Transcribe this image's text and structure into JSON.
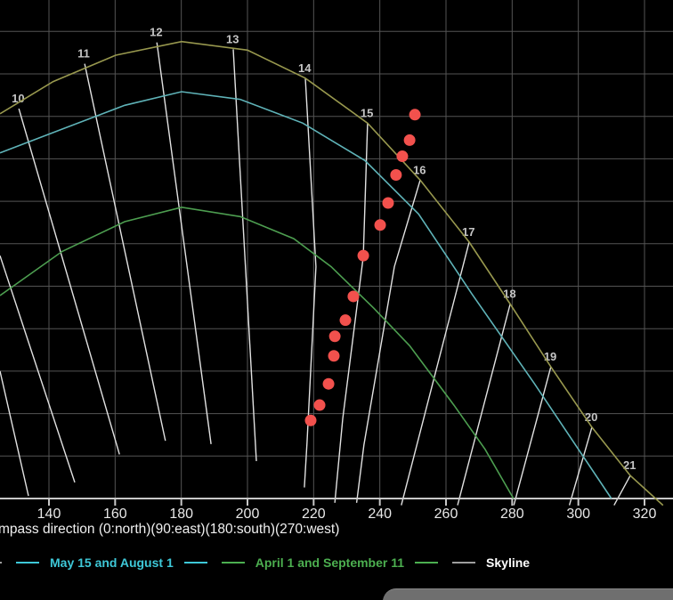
{
  "colors": {
    "background": "#000000",
    "grid": "#545454",
    "axis_skyline": "#c8c8c8",
    "hour_line": "#e2e2e2",
    "hour_label": "#c6c6c6",
    "tick_label": "#e8e8e8",
    "axis_title": "#f0f0f0",
    "upper_curve": "#98984e",
    "may_aug_curve": "#5fb3b8",
    "apr_sep_curve": "#4d9e50",
    "sun_dot": "#f2514d",
    "legend_may_aug": "#3ec8d8",
    "legend_apr_sep": "#4caf50",
    "legend_gray_dash": "#9e9e9e",
    "legend_skyline_text": "#ffffff",
    "bottom_sheet": "#6f6f6f"
  },
  "x_axis": {
    "title": "mpass direction (0:north)(90:east)(180:south)(270:west)",
    "ticks": [
      140,
      160,
      180,
      200,
      220,
      240,
      260,
      280,
      300,
      320
    ]
  },
  "legend": {
    "clipped_dash": "",
    "item1_label": "May 15 and August 1",
    "item2_label": "April 1 and September 11",
    "item3_label": "Skyline"
  },
  "chart_data": {
    "type": "line",
    "title": "",
    "xlabel": "mpass direction (0:north)(90:east)(180:south)(270:west)",
    "ylabel": "",
    "x_ticks": [
      140,
      160,
      180,
      200,
      220,
      240,
      260,
      280,
      300,
      320
    ],
    "x_visible_range": [
      125,
      329
    ],
    "y_visible_range": [
      -1,
      59
    ],
    "y_gridline_elevations": [
      5,
      10,
      15,
      20,
      25,
      30,
      35,
      40,
      45,
      50,
      55
    ],
    "skyline_elevation": 0,
    "grid": true,
    "legend_position": "bottom",
    "series": [
      {
        "id": "upper-curve",
        "legend_label": "",
        "color_key": "upper_curve",
        "points": [
          [
            125.2,
            45.3
          ],
          [
            141.3,
            49.1
          ],
          [
            160.2,
            52.2
          ],
          [
            180.1,
            53.8
          ],
          [
            200.0,
            52.8
          ],
          [
            217.5,
            49.5
          ],
          [
            236.3,
            44.2
          ],
          [
            252.2,
            37.5
          ],
          [
            267.0,
            30.2
          ],
          [
            279.4,
            22.9
          ],
          [
            291.7,
            15.5
          ],
          [
            304.1,
            8.4
          ],
          [
            315.7,
            2.7
          ],
          [
            325.6,
            -0.8
          ]
        ]
      },
      {
        "id": "may15-aug1",
        "legend_label": "May 15 and August 1",
        "color_key": "may_aug_curve",
        "points": [
          [
            125.2,
            40.7
          ],
          [
            144.0,
            43.5
          ],
          [
            162.9,
            46.3
          ],
          [
            180.1,
            47.9
          ],
          [
            197.8,
            47.0
          ],
          [
            216.7,
            44.2
          ],
          [
            235.5,
            39.8
          ],
          [
            251.7,
            33.5
          ],
          [
            267.8,
            24.1
          ],
          [
            286.6,
            13.6
          ],
          [
            310.0,
            0.0
          ]
        ]
      },
      {
        "id": "apr1-sep11",
        "legend_label": "April 1 and September 11",
        "color_key": "apr_sep_curve",
        "points": [
          [
            125.2,
            23.9
          ],
          [
            144.0,
            29.1
          ],
          [
            162.9,
            32.6
          ],
          [
            180.1,
            34.3
          ],
          [
            197.8,
            33.2
          ],
          [
            214.0,
            30.6
          ],
          [
            225.3,
            27.3
          ],
          [
            238.2,
            22.4
          ],
          [
            249.0,
            18.0
          ],
          [
            262.4,
            11.0
          ],
          [
            271.8,
            5.8
          ],
          [
            280.4,
            0.0
          ]
        ]
      }
    ],
    "hour_lines": [
      {
        "hour": "",
        "points": [
          [
            125.2,
            15.0
          ],
          [
            133.8,
            0.3
          ]
        ]
      },
      {
        "hour": "",
        "points": [
          [
            125.2,
            28.6
          ],
          [
            147.8,
            1.9
          ]
        ]
      },
      {
        "hour": "10",
        "points": [
          [
            130.9,
            45.9
          ],
          [
            161.3,
            5.2
          ]
        ]
      },
      {
        "hour": "11",
        "points": [
          [
            150.8,
            51.2
          ],
          [
            175.2,
            6.8
          ]
        ]
      },
      {
        "hour": "12",
        "points": [
          [
            172.6,
            53.7
          ],
          [
            189.0,
            6.4
          ]
        ]
      },
      {
        "hour": "13",
        "points": [
          [
            195.7,
            52.9
          ],
          [
            202.7,
            4.4
          ]
        ]
      },
      {
        "hour": "14",
        "points": [
          [
            217.5,
            49.5
          ],
          [
            220.7,
            27.3
          ],
          [
            218.0,
            6.6
          ],
          [
            217.2,
            1.3
          ]
        ]
      },
      {
        "hour": "15",
        "points": [
          [
            236.3,
            44.2
          ],
          [
            235.0,
            28.5
          ],
          [
            228.8,
            9.4
          ],
          [
            226.4,
            -0.5
          ]
        ]
      },
      {
        "hour": "16",
        "points": [
          [
            252.2,
            37.5
          ],
          [
            244.4,
            27.3
          ],
          [
            235.2,
            6.3
          ],
          [
            233.0,
            -0.5
          ]
        ]
      },
      {
        "hour": "17",
        "points": [
          [
            267.0,
            30.2
          ],
          [
            246.5,
            -0.8
          ]
        ]
      },
      {
        "hour": "18",
        "points": [
          [
            279.4,
            22.9
          ],
          [
            263.5,
            -0.8
          ]
        ]
      },
      {
        "hour": "19",
        "points": [
          [
            291.7,
            15.5
          ],
          [
            280.5,
            -0.8
          ]
        ]
      },
      {
        "hour": "20",
        "points": [
          [
            304.1,
            8.4
          ],
          [
            297.3,
            -0.8
          ]
        ]
      },
      {
        "hour": "21",
        "points": [
          [
            315.7,
            2.7
          ],
          [
            310.8,
            -0.8
          ]
        ]
      }
    ],
    "sun_points": {
      "id": "sun-position-dots",
      "color_key": "sun_dot",
      "points": [
        [
          250.6,
          45.2
        ],
        [
          249.0,
          42.2
        ],
        [
          246.8,
          40.3
        ],
        [
          244.9,
          38.1
        ],
        [
          242.5,
          34.8
        ],
        [
          240.1,
          32.2
        ],
        [
          235.0,
          28.6
        ],
        [
          232.0,
          23.8
        ],
        [
          229.6,
          21.0
        ],
        [
          226.4,
          19.1
        ],
        [
          226.1,
          16.8
        ],
        [
          224.5,
          13.5
        ],
        [
          221.8,
          11.0
        ],
        [
          219.1,
          9.2
        ]
      ]
    }
  }
}
